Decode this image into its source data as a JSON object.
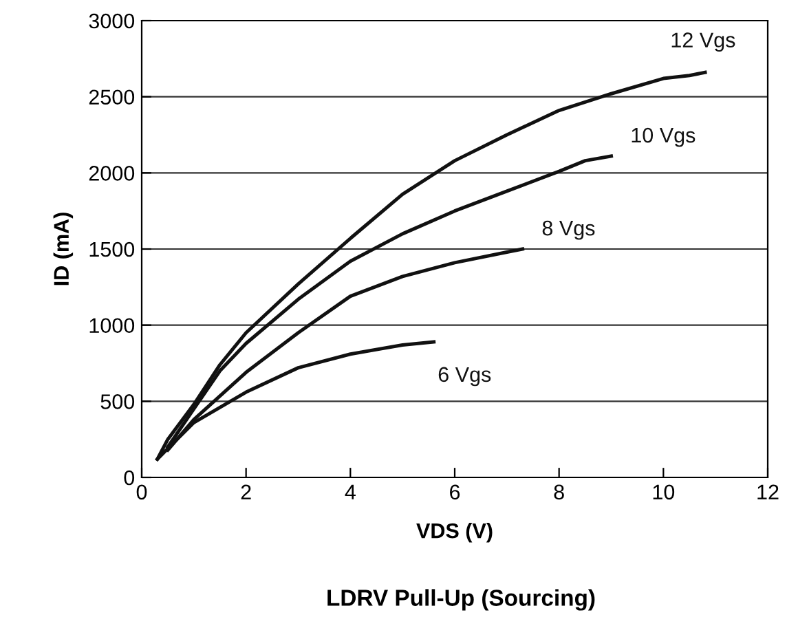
{
  "chart_data": {
    "type": "line",
    "xlabel": "VDS (V)",
    "ylabel": "ID (mA)",
    "annotations": [
      "LDRV Pull-Up (Sourcing)"
    ],
    "series": [
      {
        "name": "12 Vgs",
        "color": "#111111",
        "x": [
          0.3,
          0.5,
          1,
          1.5,
          2,
          3,
          4,
          5,
          6,
          7,
          8,
          9,
          10,
          10.5,
          10.8
        ],
        "values": [
          120,
          250,
          480,
          740,
          950,
          1270,
          1570,
          1860,
          2080,
          2250,
          2410,
          2520,
          2620,
          2640,
          2660
        ]
      },
      {
        "name": "10 Vgs",
        "color": "#111111",
        "x": [
          0.5,
          1,
          1.5,
          2,
          3,
          4,
          5,
          6,
          7,
          8,
          8.5,
          9.0
        ],
        "values": [
          200,
          450,
          700,
          880,
          1170,
          1420,
          1600,
          1750,
          1880,
          2010,
          2080,
          2110
        ]
      },
      {
        "name": "8 Vgs",
        "color": "#111111",
        "x": [
          0.5,
          1,
          2,
          3,
          4,
          5,
          6,
          7,
          7.3
        ],
        "values": [
          180,
          380,
          690,
          950,
          1190,
          1320,
          1410,
          1480,
          1500
        ]
      },
      {
        "name": "6 Vgs",
        "color": "#111111",
        "x": [
          0.3,
          0.5,
          1,
          2,
          3,
          4,
          5,
          5.6
        ],
        "values": [
          120,
          190,
          360,
          560,
          720,
          810,
          870,
          890
        ]
      }
    ],
    "xlim": [
      0,
      12
    ],
    "xticks": [
      0,
      2,
      4,
      6,
      8,
      10,
      12
    ],
    "ylim": [
      0,
      3000
    ],
    "yticks": [
      0,
      500,
      1000,
      1500,
      2000,
      2500,
      3000
    ],
    "grid": "y",
    "legend": false
  }
}
